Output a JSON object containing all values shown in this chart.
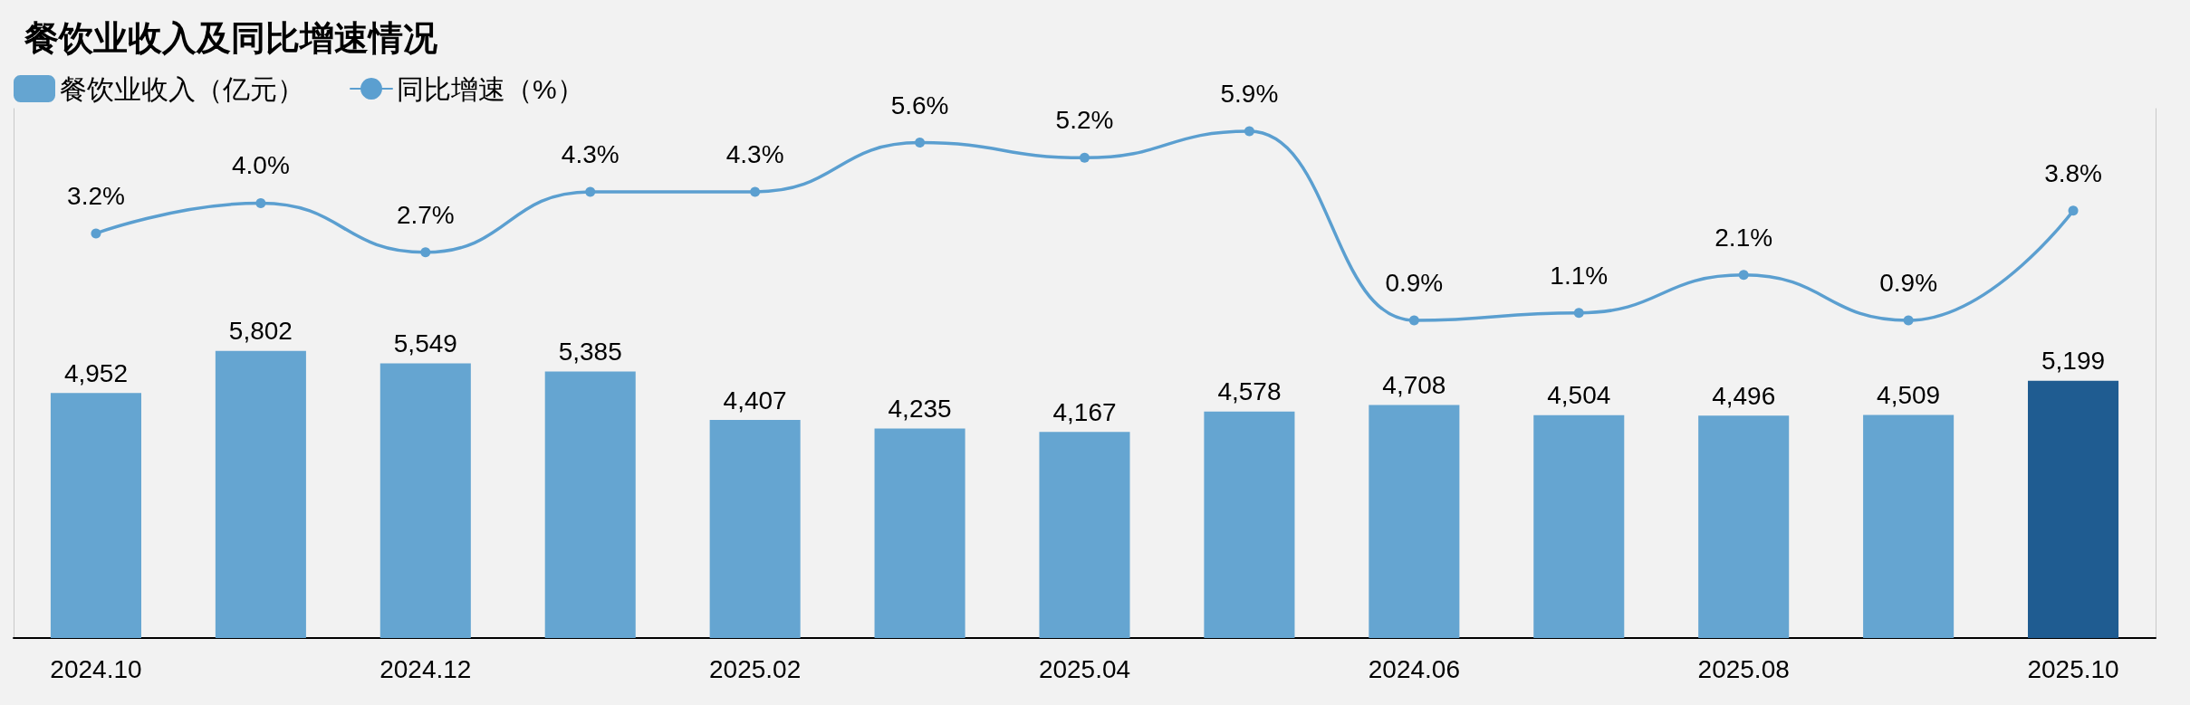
{
  "chart_data": {
    "type": "bar",
    "title": "餐饮业收入及同比增速情况",
    "categories": [
      "2024.10",
      null,
      "2024.12",
      null,
      "2025.02",
      null,
      "2025.04",
      null,
      "2024.06",
      null,
      "2025.08",
      null,
      "2025.10"
    ],
    "series": [
      {
        "name": "餐饮业收入（亿元）",
        "color": "#65a5d1",
        "colors": [
          "#65a5d1",
          "#65a5d1",
          "#65a5d1",
          "#65a5d1",
          "#65a5d1",
          "#65a5d1",
          "#65a5d1",
          "#65a5d1",
          "#65a5d1",
          "#65a5d1",
          "#65a5d1",
          "#65a5d1",
          "#1f5c91"
        ],
        "values": [
          4952,
          5802,
          5549,
          5385,
          4407,
          4235,
          4167,
          4578,
          4708,
          4504,
          4496,
          4509,
          5199
        ],
        "value_labels": [
          "4,952",
          "5,802",
          "5,549",
          "5,385",
          "4,407",
          "4,235",
          "4,167",
          "4,578",
          "4,708",
          "4,504",
          "4,496",
          "4,509",
          "5,199"
        ]
      },
      {
        "name": "同比增速（%）",
        "type": "line",
        "axis": "y2",
        "color": "#5b9fd0",
        "values": [
          3.2,
          4.0,
          2.7,
          4.3,
          4.3,
          5.6,
          5.2,
          5.9,
          0.9,
          1.1,
          2.1,
          0.9,
          3.8
        ],
        "value_labels": [
          "3.2%",
          "4.0%",
          "2.7%",
          "4.3%",
          "4.3%",
          "5.6%",
          "5.2%",
          "5.9%",
          "0.9%",
          "1.1%",
          "2.1%",
          "0.9%",
          "3.8%"
        ]
      }
    ],
    "ylim": [
      0,
      10700
    ],
    "y2lim": [
      -7.5,
      6.5
    ],
    "legend": "top left",
    "grid": false,
    "marker": "circle",
    "line_style": "solid"
  }
}
